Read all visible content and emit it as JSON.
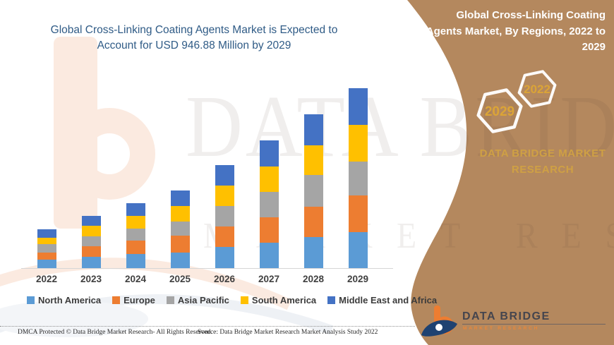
{
  "titles": {
    "left_title": "Global Cross-Linking Coating Agents Market is Expected to Account for USD 946.88 Million by 2029",
    "banner_title": "Global Cross-Linking Coating Agents Market, By Regions, 2022 to 2029"
  },
  "side_panel": {
    "panel_color": "#B4885E",
    "gold_color": "#DBA437",
    "hexagon_large_label": "2029",
    "hexagon_small_label": "2022",
    "brand_text": "DATA BRIDGE MARKET RESEARCH"
  },
  "logo": {
    "title": "DATA BRIDGE",
    "subtitle": "MARKET RESEARCH",
    "icon": "data-bridge-b-swoosh",
    "orange": "#ED7D31",
    "navy": "#1F4271"
  },
  "watermark": {
    "line1": "DATA BRIDGE",
    "line2": "MARKET RESEARCH"
  },
  "footer": {
    "dmca": "DMCA Protected © Data Bridge Market Research- All Rights Reserved.",
    "source": "Source: Data Bridge Market Research Market Analysis Study 2022"
  },
  "chart_data": {
    "type": "bar",
    "stacked": true,
    "title": "Global Cross-Linking Coating Agents Market, By Regions, 2022 to 2029",
    "categories": [
      "2022",
      "2023",
      "2024",
      "2025",
      "2026",
      "2027",
      "2028",
      "2029"
    ],
    "series": [
      {
        "name": "North America",
        "color": "#5B9BD5",
        "values": [
          45,
          59,
          74,
          82,
          111,
          134,
          163,
          189
        ]
      },
      {
        "name": "Europe",
        "color": "#ED7D31",
        "values": [
          37,
          56,
          71,
          89,
          108,
          134,
          160,
          193
        ]
      },
      {
        "name": "Asia Pacific",
        "color": "#A5A5A5",
        "values": [
          45,
          52,
          63,
          74,
          108,
          134,
          167,
          178
        ]
      },
      {
        "name": "South America",
        "color": "#FFC000",
        "values": [
          33,
          56,
          67,
          82,
          108,
          134,
          156,
          193
        ]
      },
      {
        "name": "Middle East and Africa",
        "color": "#4472C4",
        "values": [
          45,
          52,
          67,
          82,
          108,
          137,
          163,
          193
        ]
      }
    ],
    "totals_by_year": [
      205,
      275,
      342,
      409,
      543,
      673,
      809,
      946
    ],
    "units": "USD Million (estimated from bar heights; value axis is unlabeled)",
    "anchor_note": "2029 total anchored to USD 946.88 Million stated in title",
    "value_axis_visible": false,
    "gridlines": false,
    "legend_position": "bottom"
  }
}
